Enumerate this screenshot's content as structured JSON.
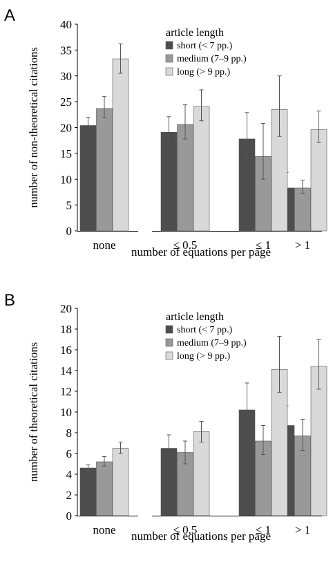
{
  "chart_data": [
    {
      "panel_label": "A",
      "type": "bar",
      "categories": [
        "none",
        "≤ 0.5",
        "≤ 1",
        "> 1"
      ],
      "xlabel": "number of equations per page",
      "ylabel": "number of non-theoretical citations",
      "ylim": [
        0,
        40
      ],
      "yticks": [
        0,
        5,
        10,
        15,
        20,
        25,
        30,
        35,
        40
      ],
      "legend_title": "article length",
      "legend_position": "top-center",
      "grid": false,
      "series": [
        {
          "name": "short (< 7 pp.)",
          "color": "#4d4d4d",
          "values": [
            20.4,
            19.1,
            17.8,
            8.3
          ],
          "err_low": [
            1.4,
            2.8,
            3.8,
            2.0
          ],
          "err_high": [
            1.6,
            3.0,
            5.1,
            3.0
          ]
        },
        {
          "name": "medium (7–9 pp.)",
          "color": "#999999",
          "values": [
            23.7,
            20.6,
            14.4,
            8.3
          ],
          "err_low": [
            1.8,
            2.8,
            4.4,
            1.0
          ],
          "err_high": [
            2.3,
            3.8,
            6.4,
            1.5
          ]
        },
        {
          "name": "long (> 9 pp.)",
          "color": "#d9d9d9",
          "values": [
            33.3,
            24.1,
            23.5,
            19.6
          ],
          "err_low": [
            2.8,
            2.8,
            5.2,
            2.5
          ],
          "err_high": [
            2.9,
            3.2,
            6.5,
            3.6
          ]
        }
      ]
    },
    {
      "panel_label": "B",
      "type": "bar",
      "categories": [
        "none",
        "≤ 0.5",
        "≤ 1",
        "> 1"
      ],
      "xlabel": "number of equations per page",
      "ylabel": "number of theoretical citations",
      "ylim": [
        0,
        20
      ],
      "yticks": [
        0,
        2,
        4,
        6,
        8,
        10,
        12,
        14,
        16,
        18,
        20
      ],
      "legend_title": "article length",
      "legend_position": "top-center",
      "grid": false,
      "series": [
        {
          "name": "short (< 7 pp.)",
          "color": "#4d4d4d",
          "values": [
            4.6,
            6.5,
            10.2,
            8.7
          ],
          "err_low": [
            0.3,
            1.1,
            1.8,
            1.2
          ],
          "err_high": [
            0.3,
            1.3,
            2.6,
            1.9
          ]
        },
        {
          "name": "medium (7–9 pp.)",
          "color": "#999999",
          "values": [
            5.2,
            6.1,
            7.2,
            7.7
          ],
          "err_low": [
            0.4,
            1.1,
            1.3,
            1.4
          ],
          "err_high": [
            0.5,
            1.1,
            1.5,
            1.6
          ]
        },
        {
          "name": "long (> 9 pp.)",
          "color": "#d9d9d9",
          "values": [
            6.5,
            8.1,
            14.1,
            14.4
          ],
          "err_low": [
            0.5,
            1.0,
            2.2,
            2.2
          ],
          "err_high": [
            0.6,
            1.0,
            3.2,
            2.6
          ]
        }
      ]
    }
  ]
}
